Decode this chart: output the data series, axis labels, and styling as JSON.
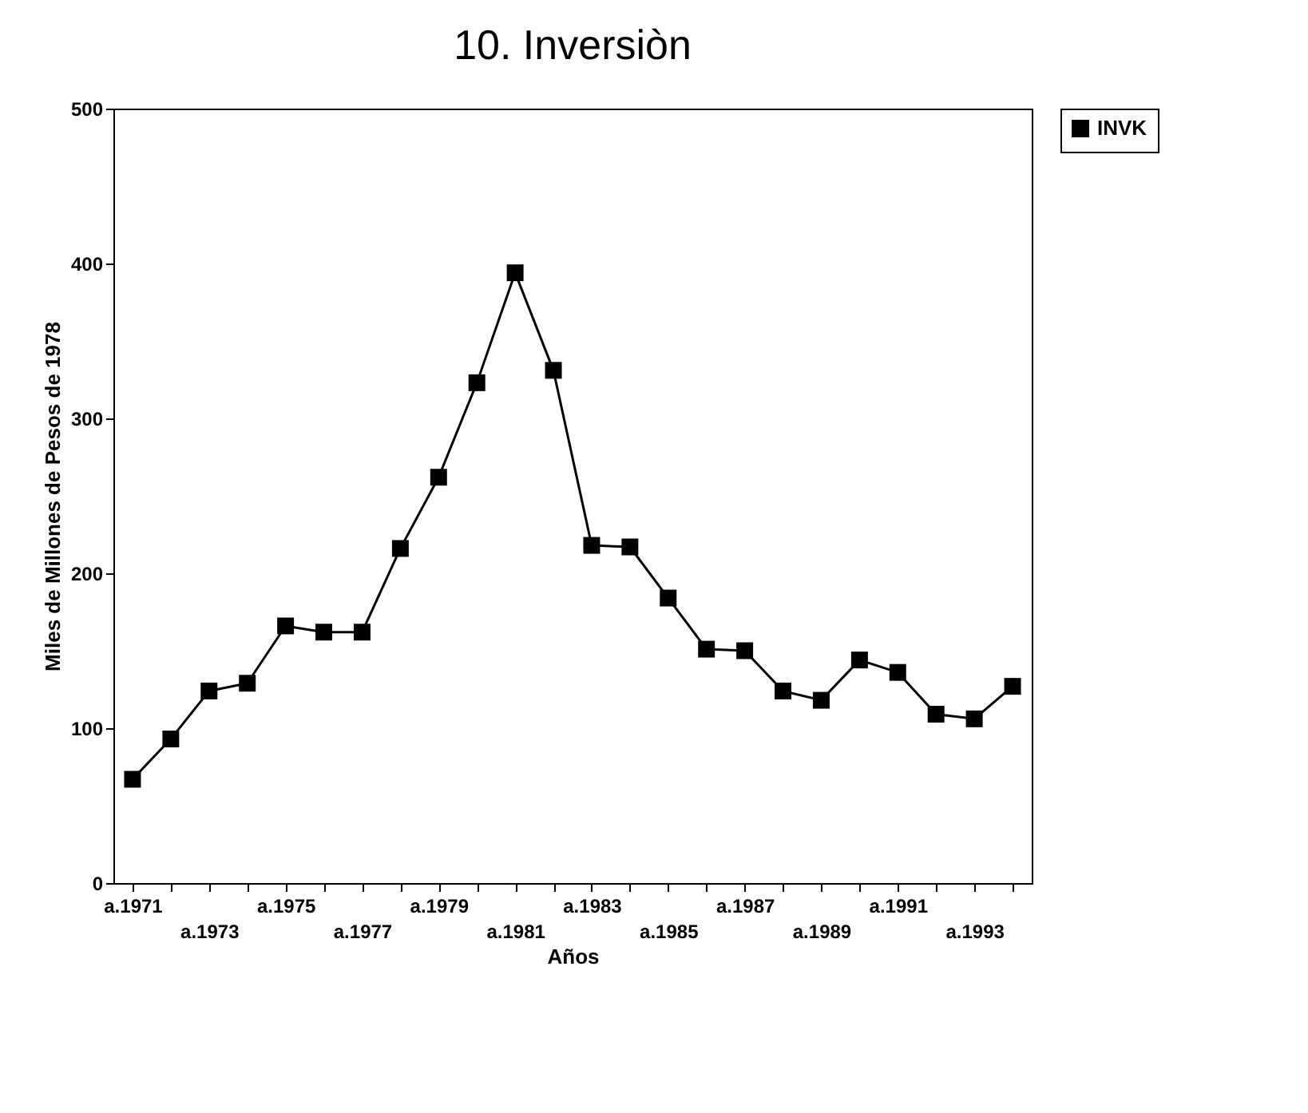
{
  "chart_data": {
    "type": "line",
    "title": "10. Inversiòn",
    "xlabel": "Años",
    "ylabel": "Miles de Millones de Pesos de 1978",
    "categories": [
      "a.1971",
      null,
      "a.1973",
      null,
      "a.1975",
      null,
      "a.1977",
      null,
      "a.1979",
      null,
      "a.1981",
      null,
      "a.1983",
      null,
      "a.1985",
      null,
      "a.1987",
      null,
      "a.1989",
      null,
      "a.1991",
      null,
      "a.1993",
      null
    ],
    "series": [
      {
        "name": "INVK",
        "color": "#000000",
        "values": [
          67,
          93,
          124,
          129,
          166,
          162,
          162,
          216,
          262,
          323,
          394,
          331,
          218,
          217,
          184,
          151,
          150,
          124,
          118,
          144,
          136,
          109,
          106,
          127
        ]
      }
    ],
    "ylim": [
      0,
      500
    ],
    "yticks": [
      0,
      100,
      200,
      300,
      400,
      500
    ],
    "grid": false,
    "legend": "right",
    "marker": "square",
    "line_style": "solid"
  }
}
